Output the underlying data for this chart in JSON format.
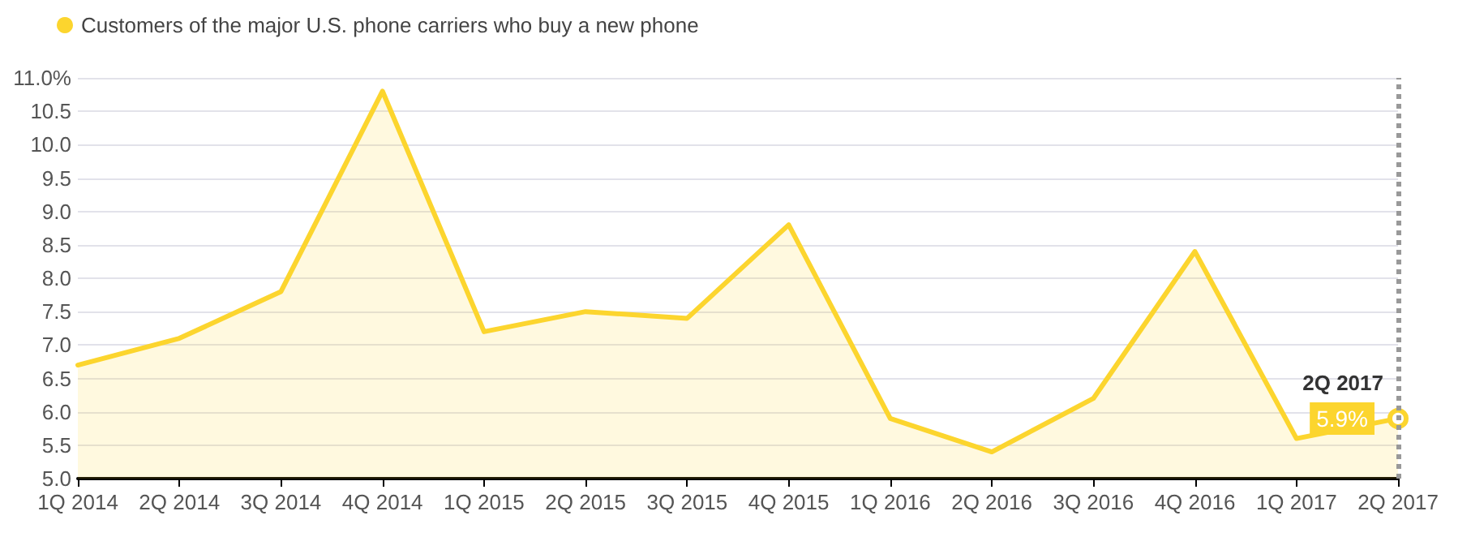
{
  "chart_data": {
    "type": "area",
    "categories": [
      "1Q 2014",
      "2Q 2014",
      "3Q 2014",
      "4Q 2014",
      "1Q 2015",
      "2Q 2015",
      "3Q 2015",
      "4Q 2015",
      "1Q 2016",
      "2Q 2016",
      "3Q 2016",
      "4Q 2016",
      "1Q 2017",
      "2Q 2017"
    ],
    "series": [
      {
        "name": "Customers of the major U.S. phone carriers who buy a new phone",
        "color": "#fcd52e",
        "values": [
          6.7,
          7.1,
          7.8,
          10.8,
          7.2,
          7.5,
          7.4,
          8.8,
          5.9,
          5.4,
          6.2,
          8.4,
          5.6,
          5.9
        ],
        "value_labels": [
          null,
          null,
          null,
          null,
          null,
          null,
          null,
          null,
          null,
          null,
          null,
          null,
          null,
          "5.9%"
        ]
      }
    ],
    "ylim": [
      5,
      11
    ],
    "yticks": [
      {
        "value": 5,
        "label": "5.0"
      },
      {
        "value": 5.5,
        "label": "5.5"
      },
      {
        "value": 6,
        "label": "6.0"
      },
      {
        "value": 6.5,
        "label": "6.5"
      },
      {
        "value": 7,
        "label": "7.0"
      },
      {
        "value": 7.5,
        "label": "7.5"
      },
      {
        "value": 8,
        "label": "8.0"
      },
      {
        "value": 8.5,
        "label": "8.5"
      },
      {
        "value": 9,
        "label": "9.0"
      },
      {
        "value": 9.5,
        "label": "9.5"
      },
      {
        "value": 10,
        "label": "10.0"
      },
      {
        "value": 10.5,
        "label": "10.5"
      },
      {
        "value": 11,
        "label": "11.0%"
      }
    ],
    "annotations": [
      {
        "text": "2Q 2017",
        "x": "2Q 2017",
        "y": 5.9
      }
    ],
    "ref_lines": [
      {
        "axis": "x",
        "value": "2Q 2017",
        "color": "#999999",
        "line_style": "dotted"
      }
    ],
    "grid": "y",
    "legend": "top left",
    "marker": "none",
    "line_style": "solid"
  }
}
